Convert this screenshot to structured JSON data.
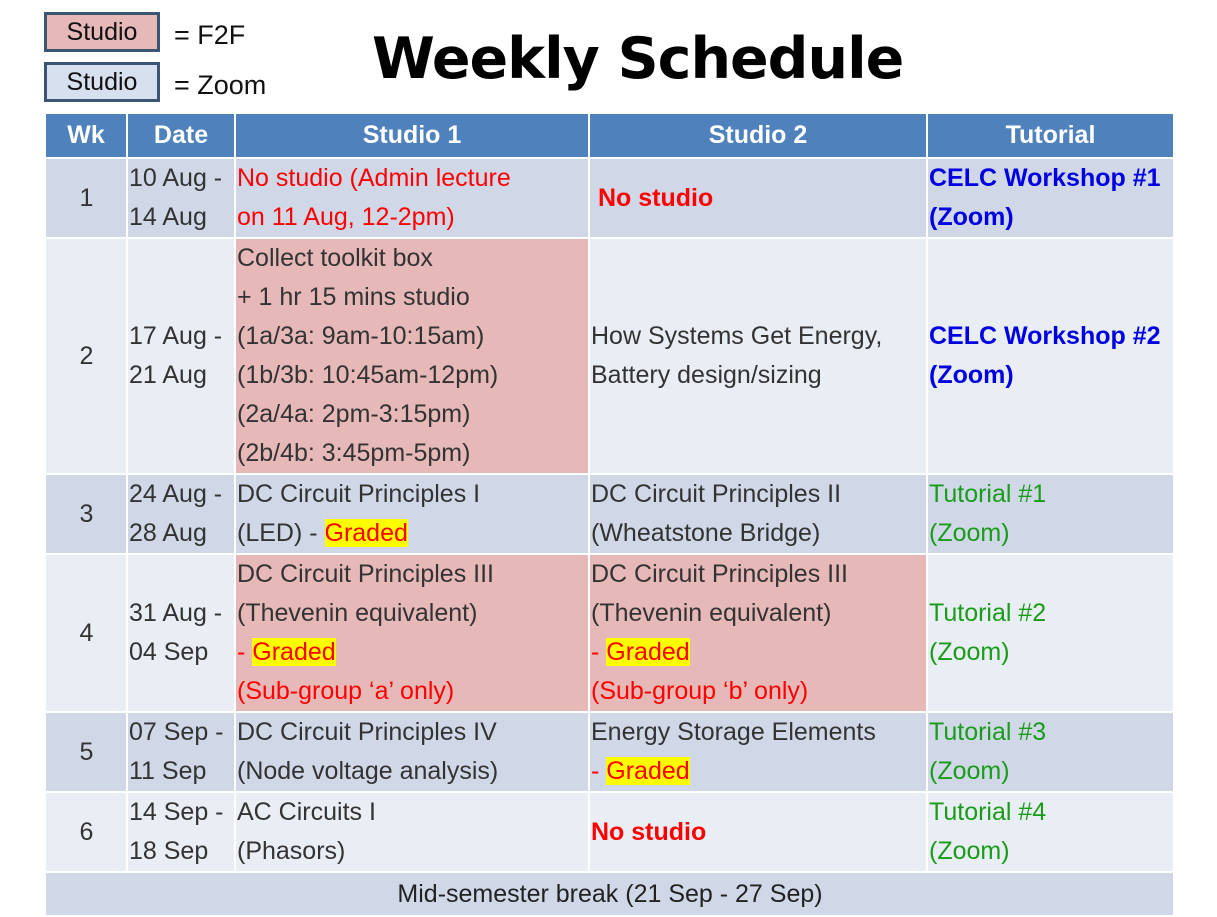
{
  "legend": {
    "f2f_box": "Studio",
    "f2f_text": "= F2F",
    "zoom_box": "Studio",
    "zoom_text": "= Zoom"
  },
  "title": "Weekly Schedule",
  "headers": {
    "wk": "Wk",
    "date": "Date",
    "studio1": "Studio 1",
    "studio2": "Studio 2",
    "tutorial": "Tutorial"
  },
  "colors": {
    "header": "#4f81bd",
    "f2f": "#e6b8b8",
    "zoom": "#d7e0ee",
    "graded_highlight": "#ffff00"
  },
  "rows": [
    {
      "wk": "1",
      "date1": "10 Aug -",
      "date2": "14 Aug",
      "s1_line1": "No studio (Admin lecture",
      "s1_line2": "on 11 Aug, 12-2pm)",
      "s2_text": "No studio",
      "tut1": "CELC Workshop #1",
      "tut2": "(Zoom)"
    },
    {
      "wk": "2",
      "date1": "17 Aug -",
      "date2": "21 Aug",
      "s1_lines": [
        "Collect toolkit box",
        "+ 1 hr 15 mins studio",
        "(1a/3a: 9am-10:15am)",
        "(1b/3b: 10:45am-12pm)",
        "(2a/4a: 2pm-3:15pm)",
        "(2b/4b: 3:45pm-5pm)"
      ],
      "s2_line1": "How Systems Get Energy,",
      "s2_line2": "Battery design/sizing",
      "tut1": "CELC Workshop #2",
      "tut2": "(Zoom)"
    },
    {
      "wk": "3",
      "date1": "24 Aug -",
      "date2": "28 Aug",
      "s1_line1": "DC Circuit Principles I",
      "s1_line2": "(LED) - ",
      "s1_graded": "Graded",
      "s2_line1": "DC Circuit Principles II",
      "s2_line2": "(Wheatstone Bridge)",
      "tut1": "Tutorial #1",
      "tut2": "(Zoom)"
    },
    {
      "wk": "4",
      "date1": "31 Aug -",
      "date2": "04 Sep",
      "s1_line1": "DC Circuit Principles III",
      "s1_line2": "(Thevenin equivalent)",
      "s1_dash": "- ",
      "s1_graded": "Graded",
      "s1_note": "(Sub-group ‘a’ only)",
      "s2_line1": "DC Circuit Principles III",
      "s2_line2": "(Thevenin equivalent)",
      "s2_dash": "- ",
      "s2_graded": "Graded",
      "s2_note": "(Sub-group ‘b’ only)",
      "tut1": "Tutorial #2",
      "tut2": "(Zoom)"
    },
    {
      "wk": "5",
      "date1": "07 Sep -",
      "date2": "11 Sep",
      "s1_line1": "DC Circuit Principles IV",
      "s1_line2": "(Node voltage analysis)",
      "s2_line1": "Energy Storage Elements",
      "s2_dash": "- ",
      "s2_graded": "Graded",
      "tut1": "Tutorial #3",
      "tut2": "(Zoom)"
    },
    {
      "wk": "6",
      "date1": "14 Sep -",
      "date2": "18 Sep",
      "s1_line1": "AC Circuits I",
      "s1_line2": "(Phasors)",
      "s2_text": "No studio",
      "tut1": "Tutorial #4",
      "tut2": "(Zoom)"
    }
  ],
  "break_text": "Mid-semester break (21 Sep - 27 Sep)"
}
